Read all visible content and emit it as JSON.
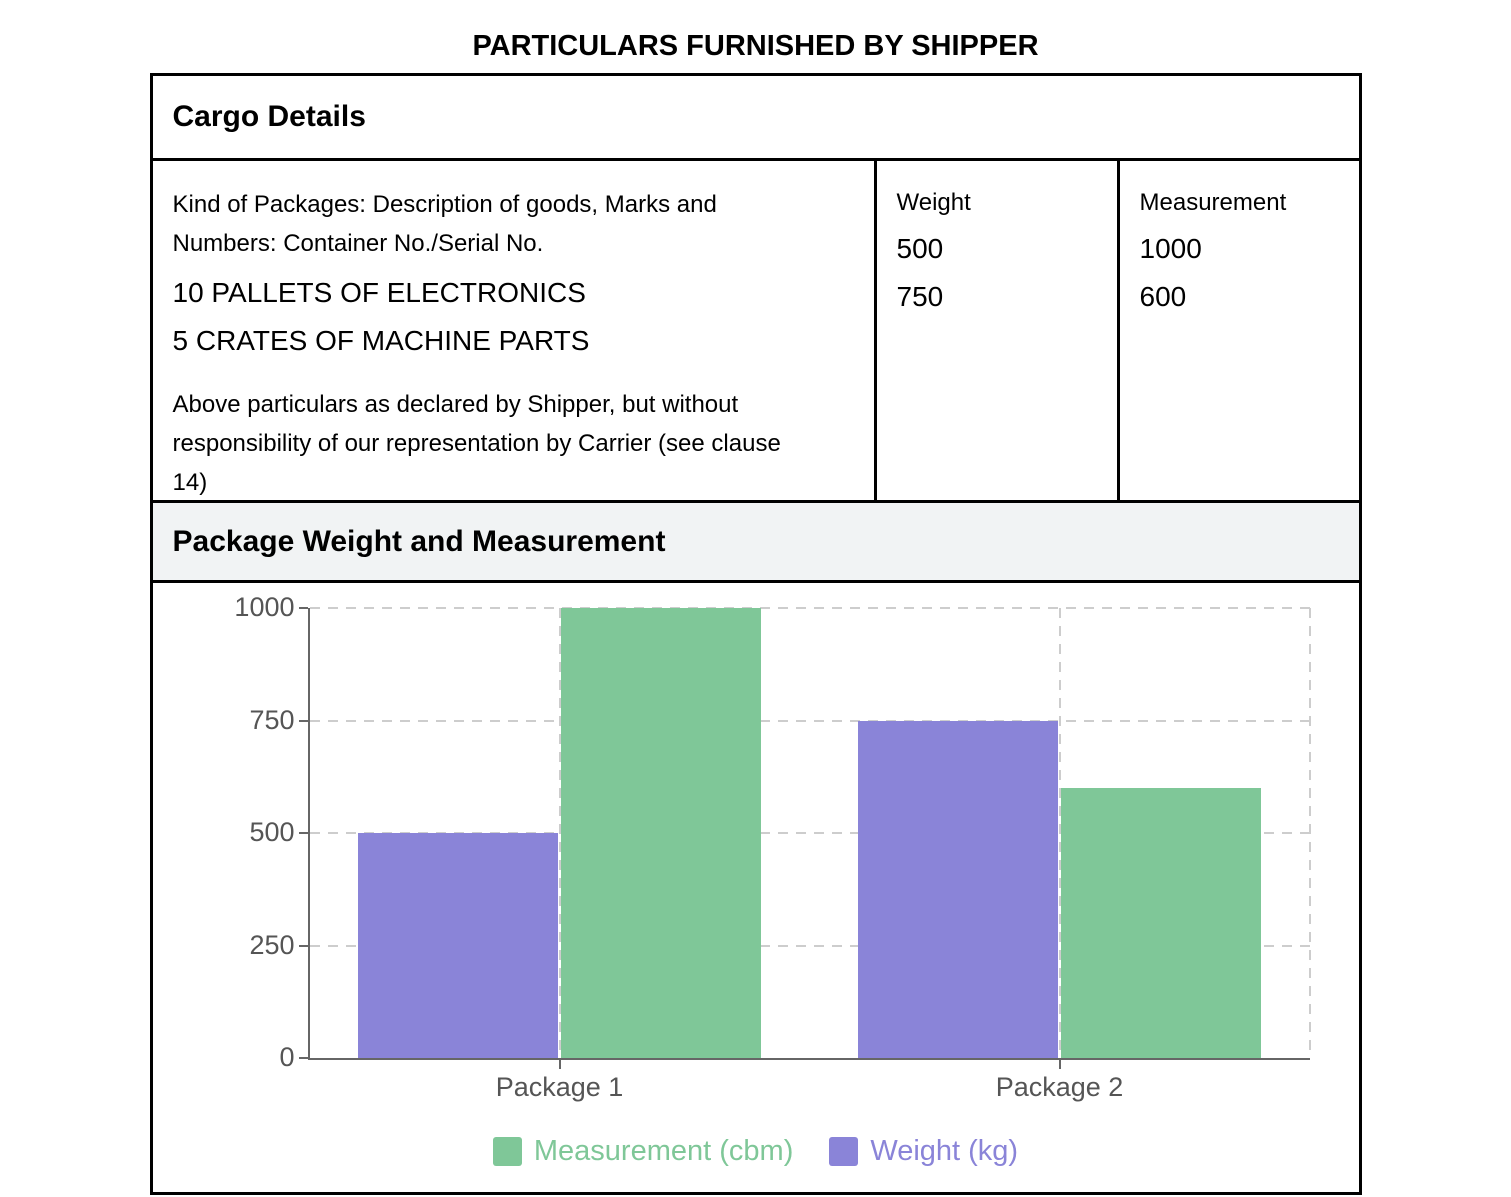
{
  "page_title": "PARTICULARS FURNISHED BY SHIPPER",
  "cargo": {
    "header": "Cargo Details",
    "description_label": "Kind of Packages: Description of goods, Marks and Numbers: Container No./Serial No.",
    "items": [
      "10 PALLETS OF ELECTRONICS",
      "5 CRATES OF MACHINE PARTS"
    ],
    "disclaimer": "Above particulars as declared by Shipper, but without responsibility of our representation by Carrier (see clause 14)",
    "weight": {
      "label": "Weight",
      "values": [
        "500",
        "750"
      ]
    },
    "measurement": {
      "label": "Measurement",
      "values": [
        "1000",
        "600"
      ]
    }
  },
  "chart_section": {
    "header": "Package Weight and Measurement"
  },
  "chart_data": {
    "type": "bar",
    "title": "",
    "xlabel": "",
    "ylabel": "",
    "categories": [
      "Package 1",
      "Package 2"
    ],
    "series": [
      {
        "name": "Weight (kg)",
        "color": "#8a84d8",
        "values": [
          500,
          750
        ]
      },
      {
        "name": "Measurement (cbm)",
        "color": "#7fc798",
        "values": [
          1000,
          600
        ]
      }
    ],
    "legend_order": [
      "Measurement (cbm)",
      "Weight (kg)"
    ],
    "legend_position": "bottom",
    "ylim": [
      0,
      1000
    ],
    "yticks": [
      0,
      250,
      500,
      750,
      1000
    ],
    "grid": true,
    "axis_color": "#666666",
    "grid_color": "#cdcdcd",
    "tick_label_color": "#555555"
  }
}
